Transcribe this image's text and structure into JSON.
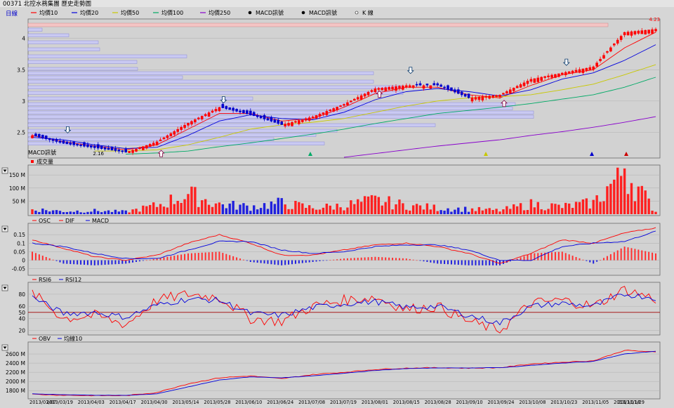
{
  "header": {
    "title": "00371 北控水務集團  歷史走勢圖",
    "period": "日線",
    "legend": [
      {
        "label": "均價10",
        "color": "#ff0000"
      },
      {
        "label": "均價20",
        "color": "#0000dd"
      },
      {
        "label": "均價50",
        "color": "#c8c800"
      },
      {
        "label": "均價100",
        "color": "#00aa66"
      },
      {
        "label": "均價250",
        "color": "#8800cc"
      },
      {
        "label": "MACD訊號",
        "color": "#111111"
      },
      {
        "label": "MACD訊號",
        "color": "#111111"
      },
      {
        "label": "K 線",
        "color": "#111111"
      }
    ],
    "hi_label": "4.23",
    "lo_label": "2.16"
  },
  "price_panel": {
    "yticks": [
      "4",
      "3.5",
      "3",
      "2.5"
    ],
    "macd_label": "MACD訊號"
  },
  "volume_panel": {
    "legend": "成交量",
    "yticks": [
      "150 M",
      "100 M",
      "50 M"
    ]
  },
  "macd_panel": {
    "legend": [
      "OSC",
      "DIF",
      "MACD"
    ],
    "yticks": [
      "0.15",
      "0.1",
      "0.05",
      "0",
      "-0.05"
    ]
  },
  "rsi_panel": {
    "legend": [
      "RSI6",
      "RSI12"
    ],
    "yticks": [
      "80",
      "60",
      "50",
      "40",
      "20"
    ]
  },
  "obv_panel": {
    "legend": [
      "OBV",
      "均線10"
    ],
    "yticks": [
      "2600 M",
      "2400 M",
      "2200 M",
      "2000 M",
      "1800 M"
    ]
  },
  "x_axis": {
    "labels": [
      "2013/03/07",
      "2013/03/19",
      "2013/04/03",
      "2013/04/17",
      "2013/04/30",
      "2013/05/14",
      "2013/05/28",
      "2013/06/10",
      "2013/06/24",
      "2013/07/08",
      "2013/07/19",
      "2013/08/01",
      "2013/08/15",
      "2013/08/28",
      "2013/09/10",
      "2013/09/24",
      "2013/10/08",
      "2013/10/23",
      "2013/11/05",
      "2013/11/18",
      "2013/11/29"
    ]
  },
  "chart_data": [
    {
      "type": "candlestick",
      "title": "00371 北控水務集團 歷史走勢圖",
      "ylim": [
        2.1,
        4.3
      ],
      "x": [
        "2013/03/07",
        "2013/03/19",
        "2013/04/03",
        "2013/04/17",
        "2013/04/30",
        "2013/05/14",
        "2013/05/28",
        "2013/06/10",
        "2013/06/24",
        "2013/07/08",
        "2013/07/19",
        "2013/08/01",
        "2013/08/15",
        "2013/08/28",
        "2013/09/10",
        "2013/09/24",
        "2013/10/08",
        "2013/10/23",
        "2013/11/05",
        "2013/11/18",
        "2013/11/29"
      ],
      "close_approx": [
        2.45,
        2.32,
        2.25,
        2.18,
        2.35,
        2.65,
        2.9,
        2.78,
        2.62,
        2.75,
        2.95,
        3.2,
        3.25,
        3.25,
        3.05,
        3.1,
        3.35,
        3.45,
        3.55,
        4.1,
        4.15
      ],
      "high": 4.23,
      "low": 2.16,
      "series": [
        {
          "name": "均價10",
          "values": [
            2.45,
            2.35,
            2.28,
            2.22,
            2.3,
            2.55,
            2.8,
            2.8,
            2.68,
            2.72,
            2.9,
            3.12,
            3.22,
            3.22,
            3.1,
            3.05,
            3.25,
            3.42,
            3.5,
            3.85,
            4.1
          ]
        },
        {
          "name": "均價20",
          "values": [
            2.42,
            2.38,
            2.3,
            2.24,
            2.26,
            2.45,
            2.68,
            2.78,
            2.72,
            2.7,
            2.82,
            3.02,
            3.15,
            3.2,
            3.15,
            3.08,
            3.18,
            3.35,
            3.45,
            3.65,
            3.9
          ]
        },
        {
          "name": "均價50",
          "values": [
            null,
            null,
            2.2,
            2.2,
            2.22,
            2.3,
            2.42,
            2.55,
            2.62,
            2.66,
            2.72,
            2.82,
            2.92,
            3.0,
            3.05,
            3.07,
            3.1,
            3.18,
            3.27,
            3.42,
            3.58
          ]
        },
        {
          "name": "均價100",
          "values": [
            null,
            null,
            null,
            2.15,
            2.17,
            2.2,
            2.27,
            2.33,
            2.4,
            2.47,
            2.55,
            2.64,
            2.72,
            2.8,
            2.85,
            2.9,
            2.96,
            3.03,
            3.1,
            3.22,
            3.38
          ]
        },
        {
          "name": "均價250",
          "values": [
            null,
            null,
            null,
            null,
            null,
            null,
            null,
            null,
            null,
            null,
            2.1,
            2.16,
            2.22,
            2.28,
            2.33,
            2.38,
            2.45,
            2.51,
            2.58,
            2.66,
            2.75
          ]
        }
      ]
    },
    {
      "type": "bar",
      "title": "成交量",
      "ylim": [
        0,
        180
      ],
      "x": [
        "2013/03/07",
        "2013/03/19",
        "2013/04/03",
        "2013/04/17",
        "2013/04/30",
        "2013/05/14",
        "2013/05/28",
        "2013/06/10",
        "2013/06/24",
        "2013/07/08",
        "2013/07/19",
        "2013/08/01",
        "2013/08/15",
        "2013/08/28",
        "2013/09/10",
        "2013/09/24",
        "2013/10/08",
        "2013/10/23",
        "2013/11/05",
        "2013/11/18",
        "2013/11/29"
      ],
      "values": [
        20,
        12,
        14,
        10,
        35,
        80,
        40,
        30,
        45,
        25,
        35,
        55,
        35,
        25,
        20,
        15,
        40,
        30,
        45,
        175,
        10
      ]
    },
    {
      "type": "line",
      "title": "MACD",
      "ylim": [
        -0.08,
        0.2
      ],
      "x": [
        "2013/03/07",
        "2013/03/19",
        "2013/04/03",
        "2013/04/17",
        "2013/04/30",
        "2013/05/14",
        "2013/05/28",
        "2013/06/10",
        "2013/06/24",
        "2013/07/08",
        "2013/07/19",
        "2013/08/01",
        "2013/08/15",
        "2013/08/28",
        "2013/09/10",
        "2013/09/24",
        "2013/10/08",
        "2013/10/23",
        "2013/11/05",
        "2013/11/18",
        "2013/11/29"
      ],
      "series": [
        {
          "name": "OSC",
          "values": [
            0.05,
            -0.02,
            -0.03,
            -0.02,
            0.01,
            0.04,
            0.05,
            -0.01,
            -0.03,
            -0.01,
            0.01,
            0.02,
            0.01,
            -0.02,
            -0.03,
            -0.03,
            0.04,
            0.05,
            -0.02,
            0.08,
            0.04
          ]
        },
        {
          "name": "DIF",
          "values": [
            0.12,
            0.07,
            0.02,
            0.0,
            0.03,
            0.1,
            0.15,
            0.1,
            0.03,
            0.03,
            0.06,
            0.09,
            0.1,
            0.08,
            0.04,
            -0.02,
            0.04,
            0.12,
            0.1,
            0.16,
            0.19
          ]
        },
        {
          "name": "MACD",
          "values": [
            0.1,
            0.08,
            0.04,
            0.01,
            0.01,
            0.06,
            0.11,
            0.11,
            0.06,
            0.04,
            0.05,
            0.08,
            0.09,
            0.09,
            0.06,
            0.0,
            0.0,
            0.08,
            0.1,
            0.11,
            0.17
          ]
        }
      ]
    },
    {
      "type": "line",
      "title": "RSI",
      "ylim": [
        15,
        95
      ],
      "x": [
        "2013/03/07",
        "2013/03/19",
        "2013/04/03",
        "2013/04/17",
        "2013/04/30",
        "2013/05/14",
        "2013/05/28",
        "2013/06/10",
        "2013/06/24",
        "2013/07/08",
        "2013/07/19",
        "2013/08/01",
        "2013/08/15",
        "2013/08/28",
        "2013/09/10",
        "2013/09/24",
        "2013/10/08",
        "2013/10/23",
        "2013/11/05",
        "2013/11/18",
        "2013/11/29"
      ],
      "series": [
        {
          "name": "RSI6",
          "values": [
            82,
            40,
            45,
            30,
            70,
            80,
            75,
            40,
            35,
            60,
            70,
            75,
            55,
            60,
            35,
            20,
            65,
            70,
            60,
            88,
            72
          ]
        },
        {
          "name": "RSI12",
          "values": [
            75,
            48,
            50,
            42,
            62,
            72,
            70,
            48,
            45,
            58,
            64,
            68,
            58,
            60,
            45,
            32,
            60,
            65,
            60,
            80,
            74
          ]
        }
      ]
    },
    {
      "type": "line",
      "title": "OBV",
      "ylim": [
        1650,
        2800
      ],
      "x": [
        "2013/03/07",
        "2013/03/19",
        "2013/04/03",
        "2013/04/17",
        "2013/04/30",
        "2013/05/14",
        "2013/05/28",
        "2013/06/10",
        "2013/06/24",
        "2013/07/08",
        "2013/07/19",
        "2013/08/01",
        "2013/08/15",
        "2013/08/28",
        "2013/09/10",
        "2013/09/24",
        "2013/10/08",
        "2013/10/23",
        "2013/11/05",
        "2013/11/18",
        "2013/11/29"
      ],
      "series": [
        {
          "name": "OBV",
          "values": [
            1720,
            1700,
            1690,
            1690,
            1760,
            1950,
            2080,
            2120,
            2060,
            2150,
            2200,
            2260,
            2290,
            2300,
            2290,
            2300,
            2380,
            2420,
            2450,
            2680,
            2640
          ]
        },
        {
          "name": "均線10",
          "values": [
            1730,
            1710,
            1700,
            1695,
            1730,
            1880,
            2030,
            2100,
            2080,
            2120,
            2180,
            2240,
            2280,
            2295,
            2295,
            2300,
            2350,
            2400,
            2440,
            2600,
            2660
          ]
        }
      ]
    }
  ]
}
